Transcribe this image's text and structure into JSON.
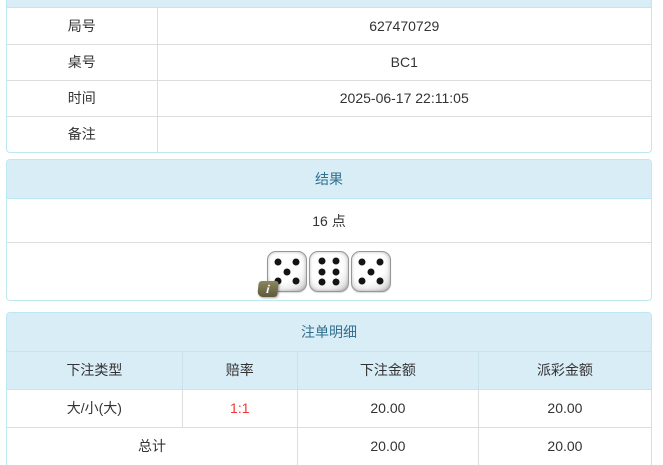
{
  "colors": {
    "panel_border": "#bce8f1",
    "header_bg": "#d9edf7",
    "header_text": "#31708f",
    "table_border": "#dddddd",
    "body_text": "#333333",
    "odds_red": "#f43535"
  },
  "game_info": {
    "rows": [
      {
        "label": "局号",
        "value": "627470729"
      },
      {
        "label": "桌号",
        "value": "BC1"
      },
      {
        "label": "时间",
        "value": "2025-06-17 22:11:05"
      },
      {
        "label": "备注",
        "value": ""
      }
    ]
  },
  "result": {
    "title": "结果",
    "points": "16 点",
    "dice": [
      5,
      6,
      5
    ],
    "dice_total": 16,
    "info_icon": "i"
  },
  "bet_details": {
    "title": "注单明细",
    "columns": [
      "下注类型",
      "赔率",
      "下注金额",
      "派彩金额"
    ],
    "rows": [
      {
        "type": "大/小(大)",
        "odds": "1:1",
        "amount": "20.00",
        "payout": "20.00"
      }
    ],
    "total": {
      "label": "总计",
      "amount": "20.00",
      "payout": "20.00"
    }
  }
}
